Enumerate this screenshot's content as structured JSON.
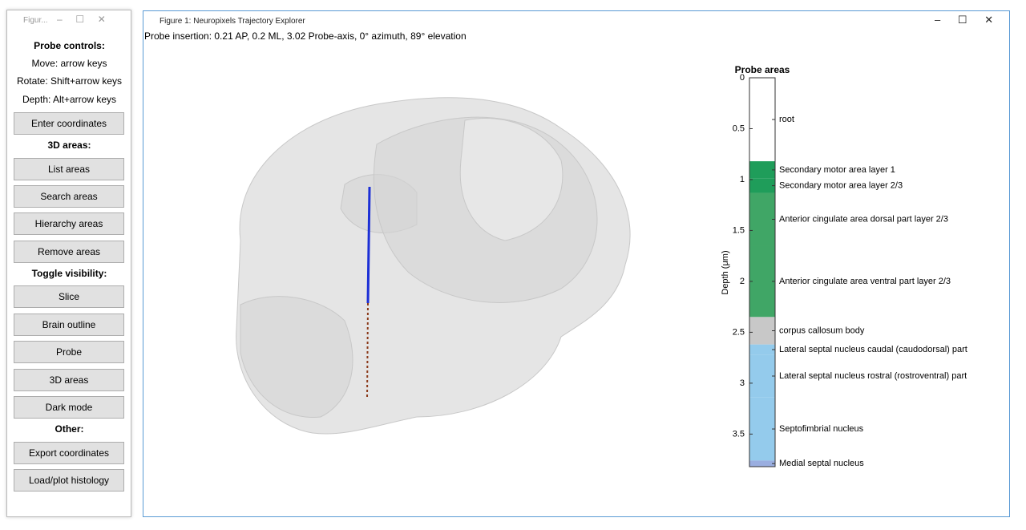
{
  "side_window": {
    "title": "Figur...",
    "headers": [
      "Probe controls:",
      "3D areas:",
      "Toggle visibility:",
      "Other:"
    ],
    "instructions": [
      "Move: arrow keys",
      "Rotate: Shift+arrow keys",
      "Depth: Alt+arrow keys"
    ],
    "buttons": [
      "Enter coordinates",
      "List areas",
      "Search areas",
      "Hierarchy areas",
      "Remove areas",
      "Slice",
      "Brain outline",
      "Probe",
      "3D areas",
      "Dark mode",
      "Export coordinates",
      "Load/plot histology"
    ]
  },
  "main_window": {
    "title": "Figure 1: Neuropixels Trajectory Explorer",
    "status": "Probe insertion: 0.21 AP, 0.2 ML, 3.02 Probe-axis, 0° azimuth, 89° elevation"
  },
  "probe_areas": {
    "title": "Probe areas",
    "ylabel": "Depth (μm)",
    "ylim": [
      0,
      3.82
    ],
    "yticks": [
      0,
      0.5,
      1,
      1.5,
      2,
      2.5,
      3,
      3.5
    ],
    "segments": [
      {
        "name": "root",
        "start": 0,
        "end": 0.82,
        "color": "#ffffff"
      },
      {
        "name": "Secondary motor area layer 1",
        "start": 0.82,
        "end": 0.99,
        "color": "#1f9d5a"
      },
      {
        "name": "Secondary motor area layer 2/3",
        "start": 0.99,
        "end": 1.13,
        "color": "#1f9d5a"
      },
      {
        "name": "Anterior cingulate area dorsal part layer 2/3",
        "start": 1.13,
        "end": 1.65,
        "color": "#40a666"
      },
      {
        "name": "Anterior cingulate area ventral part layer 2/3",
        "start": 1.65,
        "end": 2.35,
        "color": "#40a666"
      },
      {
        "name": "corpus callosum body",
        "start": 2.35,
        "end": 2.62,
        "color": "#c8c8c8"
      },
      {
        "name": "Lateral septal nucleus caudal (caudodorsal) part",
        "start": 2.62,
        "end": 2.72,
        "color": "#94cbec"
      },
      {
        "name": "Lateral septal nucleus rostral (rostroventral) part",
        "start": 2.72,
        "end": 3.14,
        "color": "#94cbec"
      },
      {
        "name": "Septofimbrial nucleus",
        "start": 3.14,
        "end": 3.76,
        "color": "#94cbec"
      },
      {
        "name": "Medial septal nucleus",
        "start": 3.76,
        "end": 3.82,
        "color": "#9aaee0"
      }
    ]
  }
}
